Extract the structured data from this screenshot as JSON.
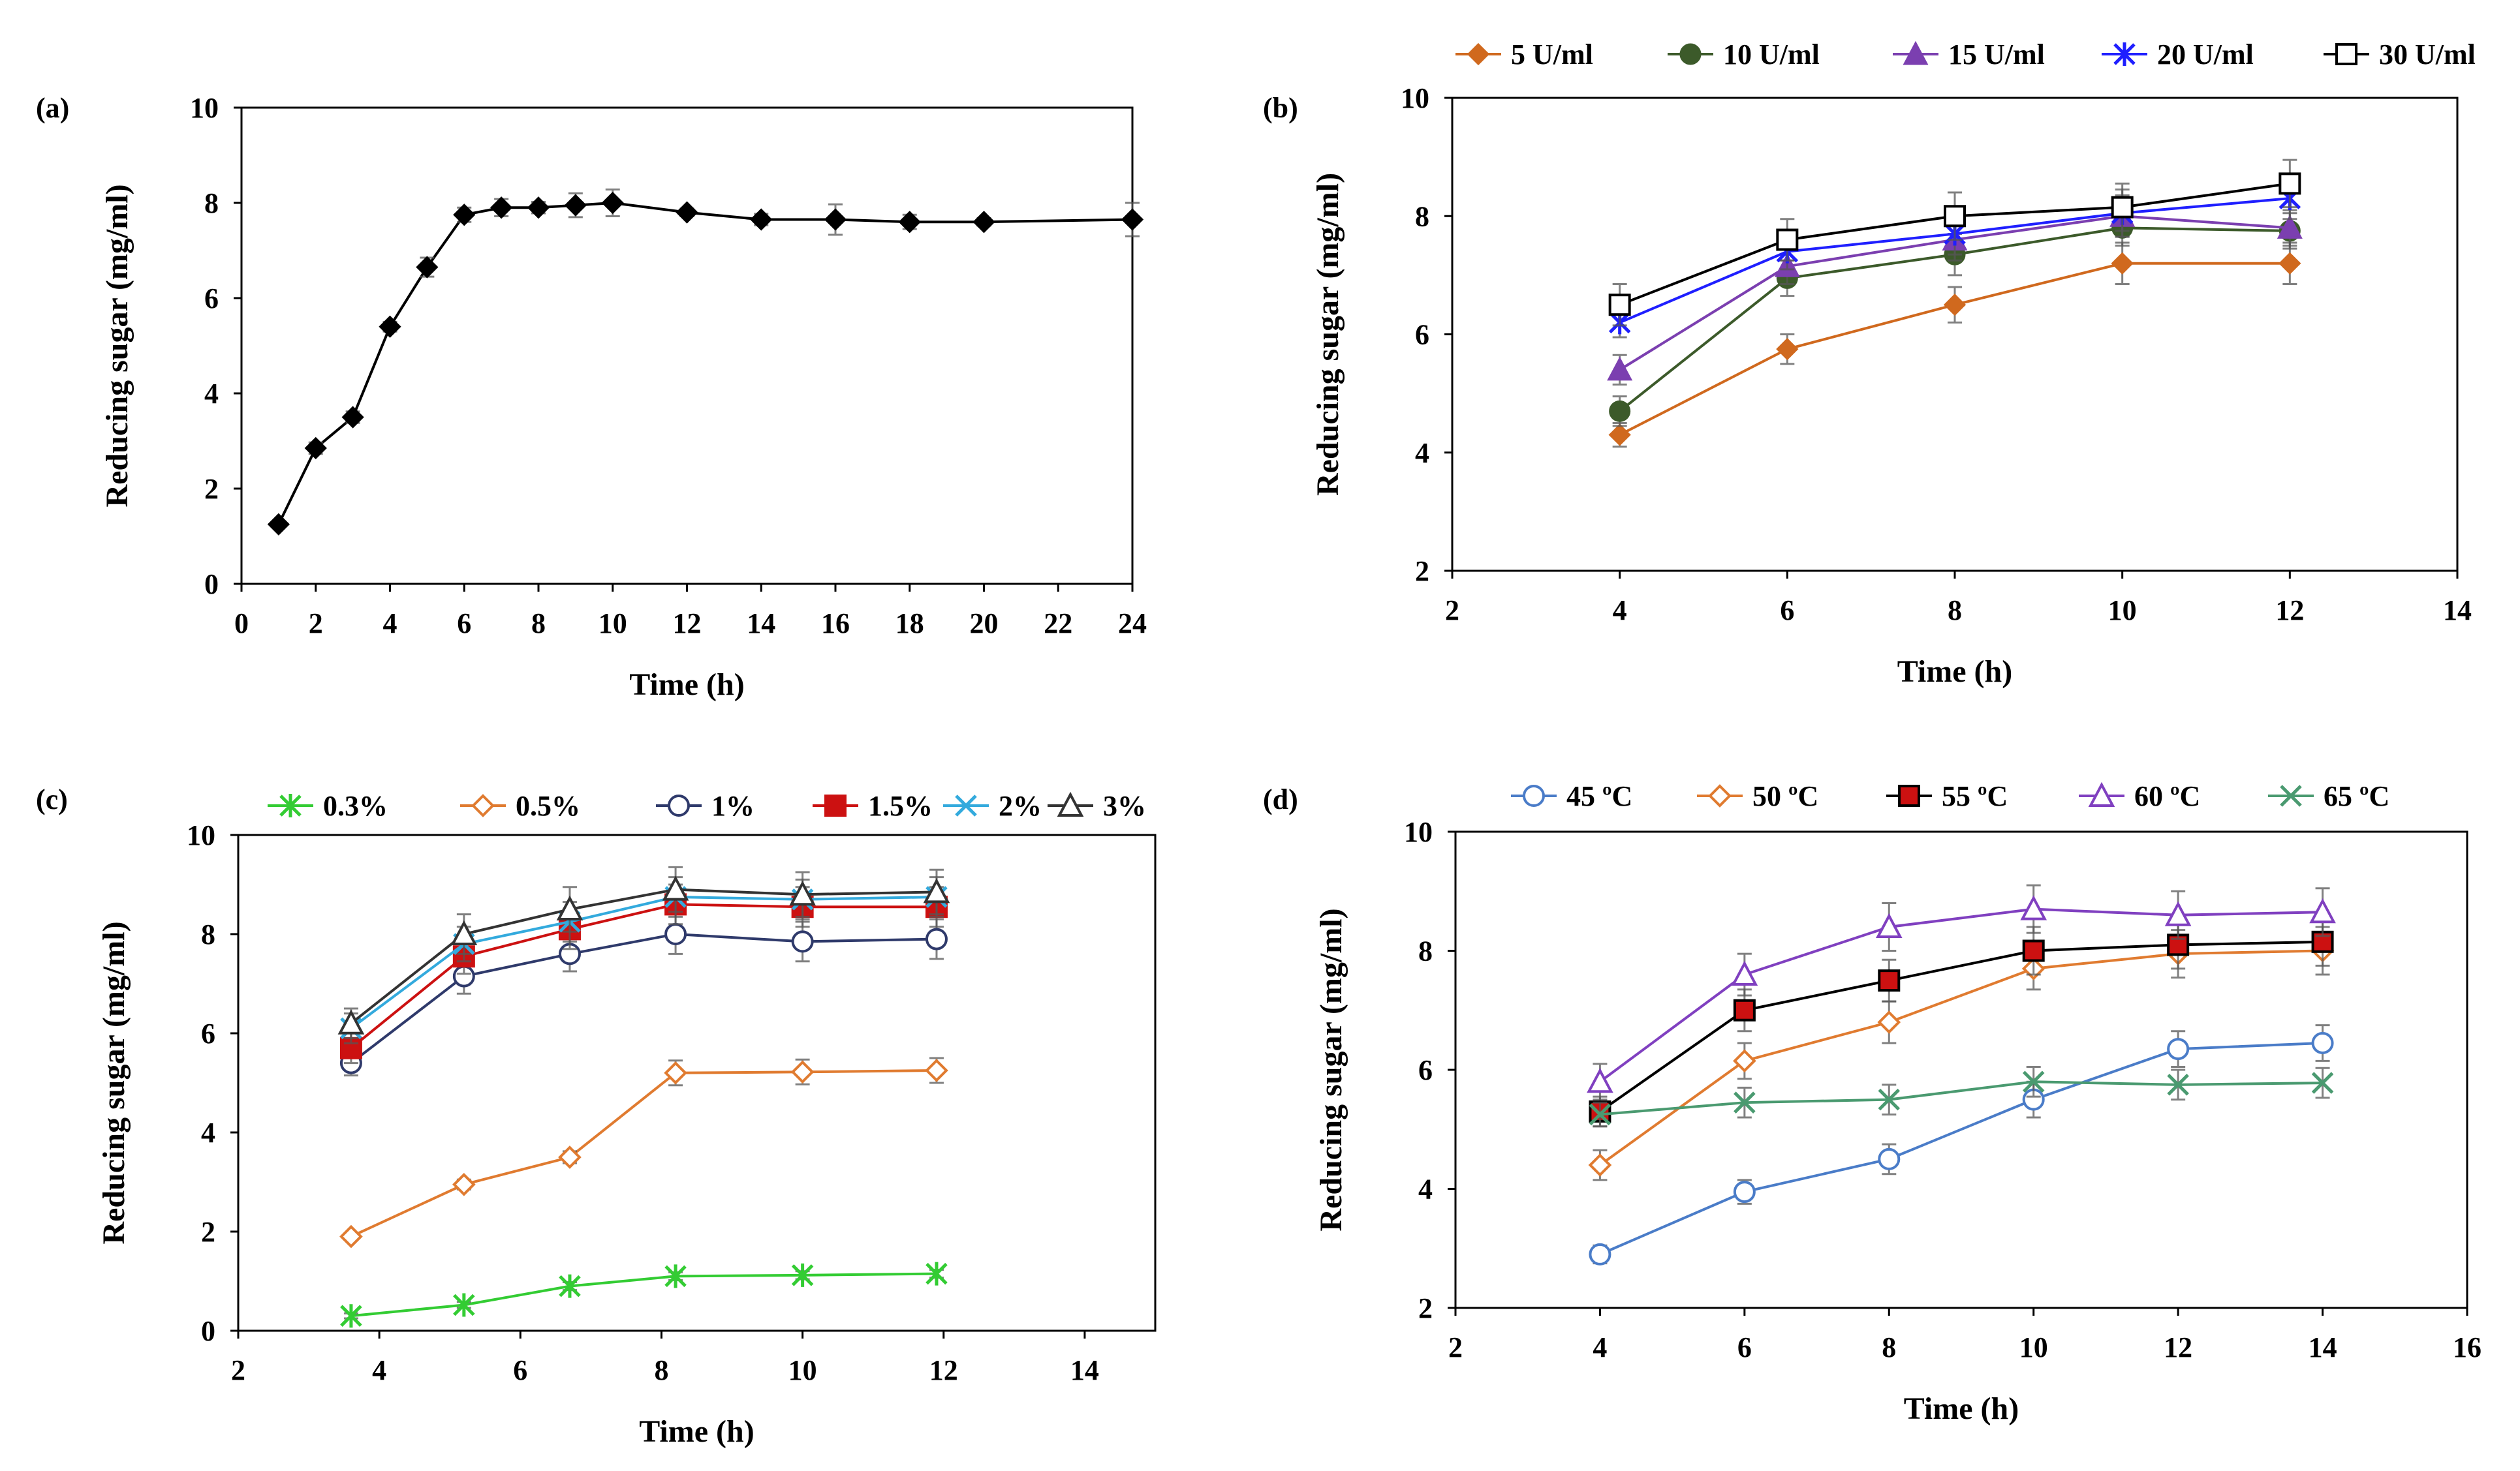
{
  "chart_data": [
    {
      "id": "a",
      "type": "line",
      "panel_label": "(a)",
      "xlabel": "Time (h)",
      "ylabel": "Reducing sugar (mg/ml)",
      "xlim": [
        0,
        24
      ],
      "ylim": [
        0,
        10
      ],
      "xticks": [
        0,
        2,
        4,
        6,
        8,
        10,
        12,
        14,
        16,
        18,
        20,
        22,
        24
      ],
      "yticks": [
        0,
        2,
        4,
        6,
        8,
        10
      ],
      "legend": false,
      "series": [
        {
          "name": "",
          "color": "#000000",
          "marker": "diamond",
          "x": [
            1,
            2,
            3,
            4,
            5,
            6,
            7,
            8,
            9,
            10,
            12,
            14,
            16,
            18,
            20,
            24
          ],
          "values": [
            1.25,
            2.85,
            3.5,
            5.4,
            6.65,
            7.75,
            7.9,
            7.9,
            7.95,
            8.0,
            7.8,
            7.65,
            7.65,
            7.6,
            7.6,
            7.65
          ],
          "errors": [
            0.05,
            0.12,
            0.12,
            0.1,
            0.2,
            0.15,
            0.18,
            0.12,
            0.25,
            0.28,
            0.08,
            0.12,
            0.32,
            0.15,
            0.08,
            0.35
          ]
        }
      ]
    },
    {
      "id": "b",
      "type": "line",
      "panel_label": "(b)",
      "xlabel": "Time (h)",
      "ylabel": "Reducing sugar (mg/ml)",
      "xlim": [
        2,
        14
      ],
      "ylim": [
        2,
        10
      ],
      "xticks": [
        2,
        4,
        6,
        8,
        10,
        12,
        14
      ],
      "yticks": [
        2,
        4,
        6,
        8,
        10
      ],
      "legend": true,
      "legend_position": "top",
      "series": [
        {
          "name": "5 U/ml",
          "color": "#D0691E",
          "marker": "diamond",
          "x": [
            4,
            6,
            8,
            10,
            12
          ],
          "values": [
            4.3,
            5.75,
            6.5,
            7.2,
            7.2
          ],
          "errors": [
            0.2,
            0.25,
            0.3,
            0.35,
            0.35
          ]
        },
        {
          "name": "10 U/ml",
          "color": "#3C5A2A",
          "marker": "circle",
          "x": [
            4,
            6,
            8,
            10,
            12
          ],
          "values": [
            4.7,
            6.95,
            7.35,
            7.8,
            7.75
          ],
          "errors": [
            0.25,
            0.3,
            0.35,
            0.3,
            0.3
          ]
        },
        {
          "name": "15 U/ml",
          "color": "#7B3FB0",
          "marker": "triangle",
          "x": [
            4,
            6,
            8,
            10,
            12
          ],
          "values": [
            5.4,
            7.15,
            7.6,
            8.0,
            7.8
          ],
          "errors": [
            0.25,
            0.3,
            0.35,
            0.35,
            0.3
          ]
        },
        {
          "name": "20 U/ml",
          "color": "#1F1FFF",
          "marker": "star",
          "x": [
            4,
            6,
            8,
            10,
            12
          ],
          "values": [
            6.2,
            7.4,
            7.7,
            8.05,
            8.3
          ],
          "errors": [
            0.25,
            0.3,
            0.35,
            0.4,
            0.35
          ]
        },
        {
          "name": "30 U/ml",
          "color": "#000000",
          "marker": "square",
          "x": [
            4,
            6,
            8,
            10,
            12
          ],
          "values": [
            6.5,
            7.6,
            8.0,
            8.15,
            8.55
          ],
          "errors": [
            0.35,
            0.35,
            0.4,
            0.4,
            0.4
          ]
        }
      ]
    },
    {
      "id": "c",
      "type": "line",
      "panel_label": "(c)",
      "xlabel": "Time (h)",
      "ylabel": "Reducing sugar (mg/ml)",
      "xlim": [
        2,
        15
      ],
      "ylim": [
        0,
        10
      ],
      "xticks": [
        2,
        4,
        6,
        8,
        10,
        12,
        14
      ],
      "yticks": [
        0,
        2,
        4,
        6,
        8,
        10
      ],
      "legend": true,
      "legend_position": "top",
      "series": [
        {
          "name": "0.3%",
          "color": "#33CC33",
          "marker": "star",
          "x": [
            3.6,
            5.2,
            6.7,
            8.2,
            10,
            11.9
          ],
          "values": [
            0.3,
            0.52,
            0.9,
            1.1,
            1.12,
            1.15
          ],
          "errors": [
            0.05,
            0.06,
            0.08,
            0.08,
            0.08,
            0.08
          ]
        },
        {
          "name": "0.5%",
          "color": "#E07B30",
          "marker": "diamond-open",
          "x": [
            3.6,
            5.2,
            6.7,
            8.2,
            10,
            11.9
          ],
          "values": [
            1.9,
            2.95,
            3.5,
            5.2,
            5.22,
            5.25
          ],
          "errors": [
            0.06,
            0.1,
            0.12,
            0.25,
            0.25,
            0.25
          ]
        },
        {
          "name": "1%",
          "color": "#2F3A6B",
          "marker": "circle-open",
          "x": [
            3.6,
            5.2,
            6.7,
            8.2,
            10,
            11.9
          ],
          "values": [
            5.4,
            7.15,
            7.6,
            8.0,
            7.85,
            7.9
          ],
          "errors": [
            0.25,
            0.35,
            0.35,
            0.4,
            0.4,
            0.4
          ]
        },
        {
          "name": "1.5%",
          "color": "#CC1111",
          "marker": "square",
          "x": [
            3.6,
            5.2,
            6.7,
            8.2,
            10,
            11.9
          ],
          "values": [
            5.7,
            7.55,
            8.1,
            8.6,
            8.55,
            8.55
          ],
          "errors": [
            0.3,
            0.35,
            0.4,
            0.4,
            0.4,
            0.4
          ]
        },
        {
          "name": "2%",
          "color": "#33AADD",
          "marker": "x",
          "x": [
            3.6,
            5.2,
            6.7,
            8.2,
            10,
            11.9
          ],
          "values": [
            6.1,
            7.8,
            8.25,
            8.75,
            8.7,
            8.75
          ],
          "errors": [
            0.3,
            0.35,
            0.4,
            0.4,
            0.4,
            0.4
          ]
        },
        {
          "name": "3%",
          "color": "#333333",
          "marker": "triangle-open",
          "x": [
            3.6,
            5.2,
            6.7,
            8.2,
            10,
            11.9
          ],
          "values": [
            6.2,
            8.0,
            8.5,
            8.9,
            8.8,
            8.85
          ],
          "errors": [
            0.3,
            0.4,
            0.45,
            0.45,
            0.45,
            0.45
          ]
        }
      ]
    },
    {
      "id": "d",
      "type": "line",
      "panel_label": "(d)",
      "xlabel": "Time (h)",
      "ylabel": "Reducing sugar (mg/ml)",
      "xlim": [
        2,
        16
      ],
      "ylim": [
        2,
        10
      ],
      "xticks": [
        2,
        4,
        6,
        8,
        10,
        12,
        14,
        16
      ],
      "yticks": [
        2,
        4,
        6,
        8,
        10
      ],
      "legend": true,
      "legend_position": "top",
      "series": [
        {
          "name": "45 ºC",
          "color": "#4A7CC8",
          "marker": "circle-open",
          "x": [
            4,
            6,
            8,
            10,
            12,
            14
          ],
          "values": [
            2.9,
            3.95,
            4.5,
            5.5,
            6.35,
            6.45
          ],
          "errors": [
            0.15,
            0.2,
            0.25,
            0.3,
            0.3,
            0.3
          ]
        },
        {
          "name": "50 ºC",
          "color": "#E07B30",
          "marker": "diamond-open",
          "x": [
            4,
            6,
            8,
            10,
            12,
            14
          ],
          "values": [
            4.4,
            6.15,
            6.8,
            7.7,
            7.95,
            8.0
          ],
          "errors": [
            0.25,
            0.3,
            0.35,
            0.35,
            0.4,
            0.4
          ]
        },
        {
          "name": "55 ºC",
          "color": "#000000",
          "marker": "square-red",
          "x": [
            4,
            6,
            8,
            10,
            12,
            14
          ],
          "values": [
            5.3,
            7.0,
            7.5,
            8.0,
            8.1,
            8.15
          ],
          "errors": [
            0.25,
            0.35,
            0.35,
            0.4,
            0.4,
            0.4
          ]
        },
        {
          "name": "60 ºC",
          "color": "#8040C0",
          "marker": "triangle-open",
          "x": [
            4,
            6,
            8,
            10,
            12,
            14
          ],
          "values": [
            5.8,
            7.6,
            8.4,
            8.7,
            8.6,
            8.65
          ],
          "errors": [
            0.3,
            0.35,
            0.4,
            0.4,
            0.4,
            0.4
          ]
        },
        {
          "name": "65 ºC",
          "color": "#4A9A70",
          "marker": "x",
          "x": [
            4,
            6,
            8,
            10,
            12,
            14
          ],
          "values": [
            5.25,
            5.45,
            5.5,
            5.8,
            5.75,
            5.78
          ],
          "errors": [
            0.2,
            0.25,
            0.25,
            0.25,
            0.25,
            0.25
          ]
        }
      ]
    }
  ]
}
